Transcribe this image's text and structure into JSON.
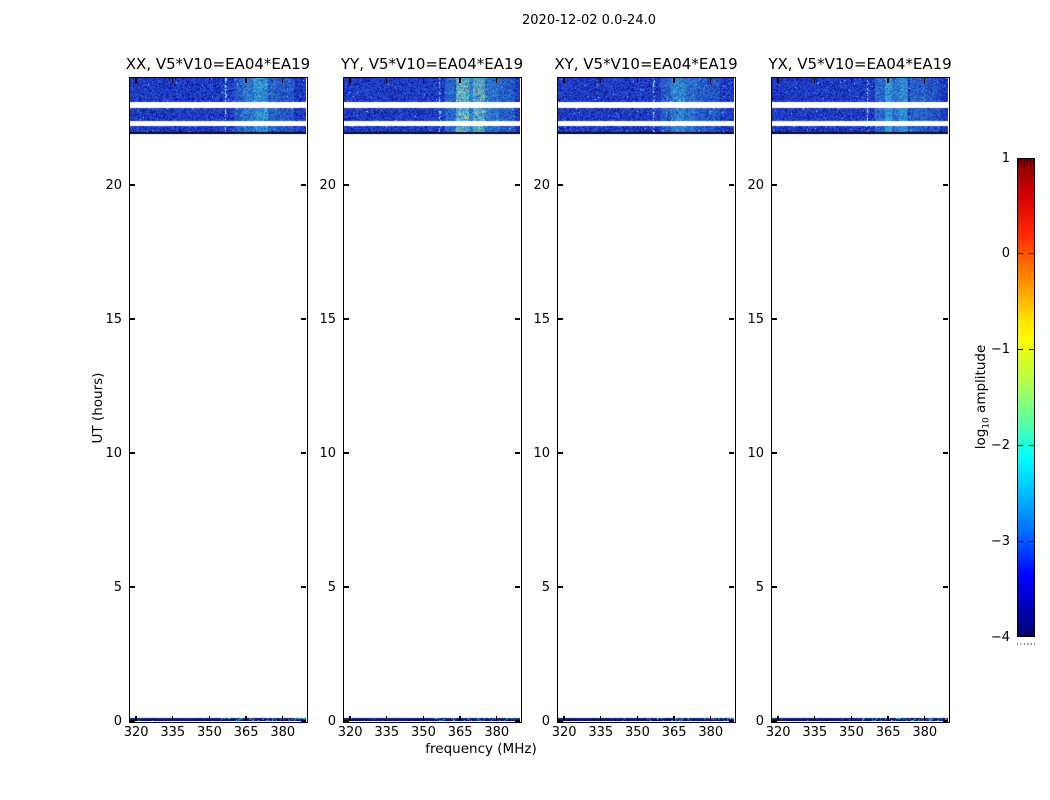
{
  "figure": {
    "title": "2020-12-02 0.0-24.0",
    "background": "#ffffff"
  },
  "chart_data": {
    "type": "heatmap",
    "title": "2020-12-02 0.0-24.0",
    "xlabel": "frequency (MHz)",
    "ylabel": "UT (hours)",
    "x_ticks": [
      320,
      335,
      350,
      365,
      380
    ],
    "y_ticks": [
      0,
      5,
      10,
      15,
      20
    ],
    "x_range_mhz": [
      317.5,
      389.5
    ],
    "y_range_hours": [
      0,
      24
    ],
    "grid": false,
    "colorbar": {
      "label_main": "log",
      "label_sub": "10",
      "label_rest": " amplitude",
      "ticks": [
        1,
        0,
        -1,
        -2,
        -3,
        -4
      ],
      "vmin": -4,
      "vmax": 1,
      "colormap": "jet"
    },
    "data_coverage": {
      "scans_ut": [
        [
          23.1,
          24.0
        ],
        [
          22.4,
          22.88
        ],
        [
          22.0,
          22.2
        ],
        [
          0.0,
          0.1
        ]
      ],
      "background_log10_amplitude": -3.3,
      "rfi_log10_amplitude_peak": -1.5,
      "rfi_region_mhz": [
        358,
        387
      ]
    },
    "subplots": [
      {
        "pol": "XX",
        "title": "XX, V5*V10=EA04*EA19",
        "dotted_line_frac": 0.537,
        "rfi_stripes_frac": [
          [
            0.59,
            0.64,
            0.28
          ],
          [
            0.64,
            0.7,
            0.5
          ],
          [
            0.7,
            0.78,
            0.72
          ],
          [
            0.78,
            0.83,
            0.35
          ],
          [
            0.83,
            0.93,
            0.25
          ]
        ]
      },
      {
        "pol": "YY",
        "title": "YY, V5*V10=EA04*EA19",
        "dotted_line_frac": 0.537,
        "rfi_stripes_frac": [
          [
            0.57,
            0.635,
            0.35
          ],
          [
            0.635,
            0.71,
            0.92
          ],
          [
            0.71,
            0.73,
            0.55
          ],
          [
            0.73,
            0.8,
            0.85
          ],
          [
            0.8,
            0.88,
            0.45
          ],
          [
            0.88,
            0.97,
            0.28
          ]
        ]
      },
      {
        "pol": "XY",
        "title": "XY, V5*V10=EA04*EA19",
        "dotted_line_frac": 0.537,
        "rfi_stripes_frac": [
          [
            0.58,
            0.64,
            0.32
          ],
          [
            0.64,
            0.72,
            0.62
          ],
          [
            0.72,
            0.78,
            0.45
          ],
          [
            0.78,
            0.84,
            0.3
          ],
          [
            0.84,
            0.92,
            0.22
          ]
        ]
      },
      {
        "pol": "YX",
        "title": "YX, V5*V10=EA04*EA19",
        "dotted_line_frac": 0.537,
        "rfi_stripes_frac": [
          [
            0.58,
            0.64,
            0.38
          ],
          [
            0.64,
            0.68,
            0.75
          ],
          [
            0.68,
            0.72,
            0.5
          ],
          [
            0.72,
            0.77,
            0.68
          ],
          [
            0.78,
            0.88,
            0.32
          ],
          [
            0.88,
            0.95,
            0.2
          ]
        ]
      }
    ]
  }
}
